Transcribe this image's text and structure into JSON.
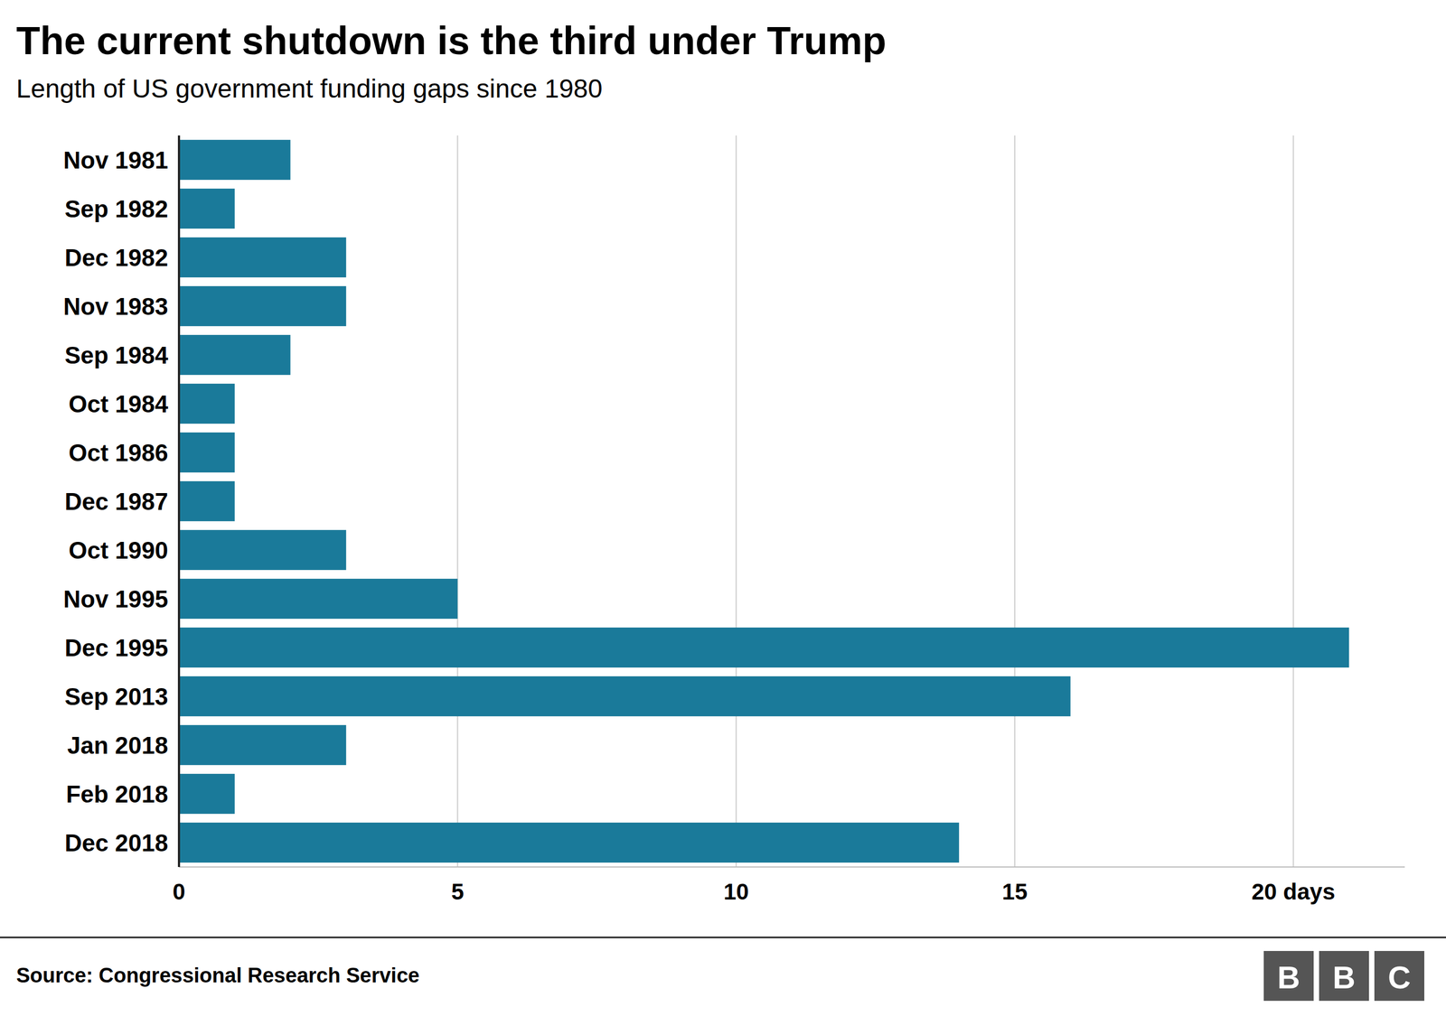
{
  "chart_data": {
    "type": "bar",
    "orientation": "horizontal",
    "title": "The current shutdown is the third under Trump",
    "subtitle": "Length of US government funding gaps since 1980",
    "source": "Source: Congressional Research Service",
    "logo": [
      "B",
      "B",
      "C"
    ],
    "categories": [
      "Nov 1981",
      "Sep 1982",
      "Dec 1982",
      "Nov 1983",
      "Sep 1984",
      "Oct 1984",
      "Oct 1986",
      "Dec 1987",
      "Oct 1990",
      "Nov 1995",
      "Dec 1995",
      "Sep 2013",
      "Jan 2018",
      "Feb 2018",
      "Dec 2018"
    ],
    "values": [
      2,
      1,
      3,
      3,
      2,
      1,
      1,
      1,
      3,
      5,
      21,
      16,
      3,
      1,
      14
    ],
    "color": "#1a7a9a",
    "xlim": [
      0,
      22
    ],
    "xticks": [
      0,
      5,
      10,
      15,
      {
        "value": 20,
        "label": "20 days"
      }
    ],
    "grid": true
  }
}
